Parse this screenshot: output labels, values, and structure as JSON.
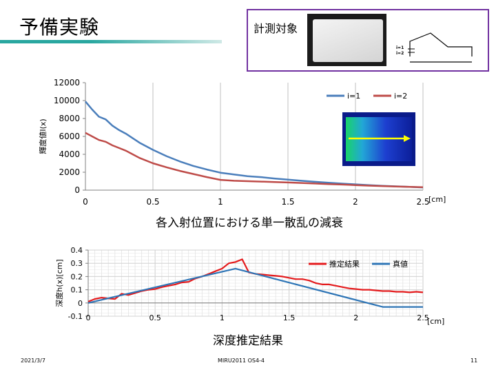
{
  "slide": {
    "title": "予備実験",
    "measurement_target_label": "計測対象",
    "photo_marks": [
      "i=1",
      "i=2"
    ],
    "footer_date": "2021/3/7",
    "footer_center": "MIRU2011 OS4-4",
    "page_number": "11",
    "colors": {
      "accent": "#29a7a0",
      "box_border": "#7030a0"
    }
  },
  "chart_data": [
    {
      "type": "line",
      "title": "各入射位置における単一散乱の減衰",
      "ylabel": "輝度値I(x)",
      "xlabel": "",
      "x_unit": "[cm]",
      "xlim": [
        0,
        2.5
      ],
      "ylim": [
        0,
        12000
      ],
      "x_ticks": [
        "0",
        "0.5",
        "1",
        "1.5",
        "2",
        "2.5"
      ],
      "y_ticks": [
        "0",
        "2000",
        "4000",
        "6000",
        "8000",
        "10000",
        "12000"
      ],
      "grid": "vertical",
      "legend_position": "top-right",
      "series": [
        {
          "name": "i=1",
          "color": "#4a7ebb",
          "x": [
            0,
            0.05,
            0.1,
            0.15,
            0.2,
            0.25,
            0.3,
            0.35,
            0.4,
            0.5,
            0.6,
            0.7,
            0.8,
            0.9,
            1.0,
            1.1,
            1.2,
            1.3,
            1.4,
            1.5,
            1.6,
            1.7,
            1.8,
            1.9,
            2.0,
            2.1,
            2.2,
            2.3,
            2.4,
            2.5
          ],
          "y": [
            9900,
            9000,
            8200,
            7900,
            7200,
            6700,
            6300,
            5800,
            5300,
            4500,
            3800,
            3200,
            2700,
            2300,
            1950,
            1750,
            1550,
            1450,
            1300,
            1180,
            1050,
            930,
            830,
            730,
            650,
            560,
            480,
            420,
            360,
            300
          ]
        },
        {
          "name": "i=2",
          "color": "#be4b48",
          "x": [
            0,
            0.05,
            0.1,
            0.15,
            0.2,
            0.25,
            0.3,
            0.35,
            0.4,
            0.5,
            0.6,
            0.7,
            0.8,
            0.9,
            1.0,
            1.1,
            1.2,
            1.3,
            1.4,
            1.5,
            1.6,
            1.7,
            1.8,
            1.9,
            2.0,
            2.1,
            2.2,
            2.3,
            2.4,
            2.5
          ],
          "y": [
            6400,
            6000,
            5600,
            5400,
            5000,
            4700,
            4400,
            4000,
            3600,
            3000,
            2550,
            2150,
            1800,
            1450,
            1150,
            1050,
            1000,
            950,
            900,
            850,
            800,
            740,
            680,
            620,
            560,
            500,
            450,
            410,
            360,
            330
          ]
        }
      ],
      "inset": {
        "description_hidden": true,
        "arrow_color": "#ffff00"
      }
    },
    {
      "type": "line",
      "title": "深度推定結果",
      "ylabel": "深度h(x)[cm]",
      "xlabel": "",
      "x_unit": "[cm]",
      "xlim": [
        0,
        2.5
      ],
      "ylim": [
        -0.1,
        0.4
      ],
      "x_ticks": [
        "0",
        "0.5",
        "1",
        "1.5",
        "2",
        "2.5"
      ],
      "y_ticks": [
        "-0.1",
        "0",
        "0.1",
        "0.2",
        "0.3",
        "0.4"
      ],
      "grid": "both",
      "legend_position": "top-right",
      "series": [
        {
          "name": "推定結果",
          "color": "#e41a1c",
          "x": [
            0,
            0.05,
            0.1,
            0.15,
            0.2,
            0.25,
            0.3,
            0.35,
            0.4,
            0.45,
            0.5,
            0.55,
            0.6,
            0.65,
            0.7,
            0.75,
            0.8,
            0.85,
            0.9,
            0.95,
            1.0,
            1.05,
            1.1,
            1.15,
            1.2,
            1.25,
            1.3,
            1.35,
            1.4,
            1.45,
            1.5,
            1.55,
            1.6,
            1.65,
            1.7,
            1.75,
            1.8,
            1.85,
            1.9,
            1.95,
            2.0,
            2.05,
            2.1,
            2.15,
            2.2,
            2.25,
            2.3,
            2.35,
            2.4,
            2.45,
            2.5
          ],
          "y": [
            0.01,
            0.03,
            0.04,
            0.035,
            0.03,
            0.07,
            0.06,
            0.075,
            0.09,
            0.1,
            0.105,
            0.12,
            0.13,
            0.14,
            0.155,
            0.16,
            0.185,
            0.2,
            0.22,
            0.24,
            0.26,
            0.3,
            0.31,
            0.33,
            0.23,
            0.22,
            0.215,
            0.21,
            0.205,
            0.2,
            0.19,
            0.18,
            0.18,
            0.17,
            0.15,
            0.14,
            0.14,
            0.13,
            0.12,
            0.11,
            0.105,
            0.1,
            0.1,
            0.095,
            0.09,
            0.09,
            0.085,
            0.085,
            0.08,
            0.085,
            0.08
          ]
        },
        {
          "name": "真値",
          "color": "#2e75b6",
          "x": [
            0,
            1.1,
            2.2,
            2.5
          ],
          "y": [
            0,
            0.26,
            -0.03,
            -0.03
          ]
        }
      ]
    }
  ]
}
